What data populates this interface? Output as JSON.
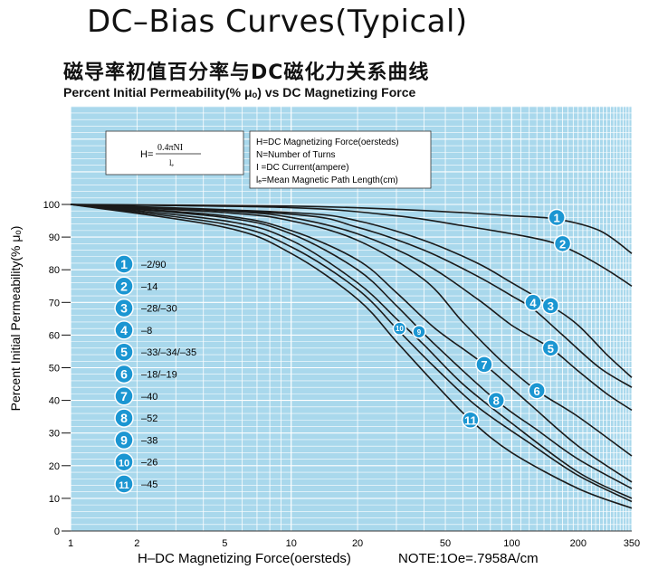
{
  "header": {
    "title": "DC–Bias Curves(Typical)",
    "cn_title": "磁导率初值百分率与DC磁化力关系曲线",
    "en_title": "Percent Initial Permeability(% μₒ) vs DC Magnetizing Force"
  },
  "formula": {
    "lhs": "H=",
    "numerator": "0.4πNI",
    "denominator": "lₑ"
  },
  "definitions": [
    "H=DC Magnetizing Force(oersteds)",
    "N=Number of Turns",
    "I =DC Current(ampere)",
    "lₑ=Mean Magnetic Path Length(cm)"
  ],
  "legend": [
    {
      "id": "1",
      "label": "–2/90"
    },
    {
      "id": "2",
      "label": "–14"
    },
    {
      "id": "3",
      "label": "–28/–30"
    },
    {
      "id": "4",
      "label": "–8"
    },
    {
      "id": "5",
      "label": "–33/–34/–35"
    },
    {
      "id": "6",
      "label": "–18/–19"
    },
    {
      "id": "7",
      "label": "–40"
    },
    {
      "id": "8",
      "label": "–52"
    },
    {
      "id": "9",
      "label": "–38"
    },
    {
      "id": "10",
      "label": "–26"
    },
    {
      "id": "11",
      "label": "–45"
    }
  ],
  "footer": {
    "xlabel": "H–DC Magnetizing Force(oersteds)",
    "note": "NOTE:1Oe=.7958A/cm"
  },
  "colors": {
    "plot_bg": "#a9d8ec",
    "grid": "#ffffff",
    "curve": "#1a1a1a",
    "badge": "#1b96d2",
    "badge_text": "#ffffff"
  },
  "chart_data": {
    "type": "line",
    "x_scale": "log",
    "xlim": [
      1,
      350
    ],
    "ylim": [
      0,
      100
    ],
    "x_ticks": [
      1,
      2,
      5,
      10,
      20,
      50,
      100,
      200,
      350
    ],
    "y_ticks": [
      0,
      10,
      20,
      30,
      40,
      50,
      60,
      70,
      80,
      90,
      100
    ],
    "ylabel": "Percent Initial Permeability(% μₒ)",
    "xlabel": "H–DC Magnetizing Force(oersteds)",
    "grid": true,
    "series": [
      {
        "name": "1",
        "label_at": [
          160,
          96
        ],
        "points": [
          [
            1,
            100
          ],
          [
            10,
            99.5
          ],
          [
            30,
            98.5
          ],
          [
            60,
            97.5
          ],
          [
            100,
            96.5
          ],
          [
            160,
            95.5
          ],
          [
            250,
            92
          ],
          [
            350,
            85
          ]
        ]
      },
      {
        "name": "2",
        "label_at": [
          170,
          88
        ],
        "points": [
          [
            1,
            100
          ],
          [
            10,
            99
          ],
          [
            30,
            96.5
          ],
          [
            60,
            93.5
          ],
          [
            100,
            91
          ],
          [
            150,
            88.5
          ],
          [
            200,
            85
          ],
          [
            270,
            80
          ],
          [
            350,
            75
          ]
        ]
      },
      {
        "name": "3",
        "label_at": [
          150,
          69
        ],
        "points": [
          [
            1,
            100
          ],
          [
            10,
            97.5
          ],
          [
            20,
            95
          ],
          [
            40,
            89
          ],
          [
            70,
            82
          ],
          [
            100,
            76
          ],
          [
            150,
            69
          ],
          [
            200,
            63
          ],
          [
            270,
            54
          ],
          [
            350,
            47
          ]
        ]
      },
      {
        "name": "4",
        "label_at": [
          125,
          70
        ],
        "points": [
          [
            1,
            100
          ],
          [
            10,
            97
          ],
          [
            20,
            93
          ],
          [
            40,
            86
          ],
          [
            70,
            78
          ],
          [
            100,
            72
          ],
          [
            125,
            68
          ],
          [
            170,
            60
          ],
          [
            250,
            50
          ],
          [
            350,
            44
          ]
        ]
      },
      {
        "name": "5",
        "label_at": [
          150,
          56
        ],
        "points": [
          [
            1,
            100
          ],
          [
            5,
            98
          ],
          [
            10,
            96
          ],
          [
            20,
            91
          ],
          [
            40,
            82
          ],
          [
            70,
            71
          ],
          [
            100,
            63
          ],
          [
            150,
            56
          ],
          [
            200,
            49
          ],
          [
            270,
            42
          ],
          [
            350,
            37
          ]
        ]
      },
      {
        "name": "6",
        "label_at": [
          130,
          43
        ],
        "points": [
          [
            1,
            100
          ],
          [
            5,
            97.5
          ],
          [
            10,
            95
          ],
          [
            20,
            89
          ],
          [
            40,
            77
          ],
          [
            60,
            64
          ],
          [
            90,
            52
          ],
          [
            130,
            43
          ],
          [
            200,
            35
          ],
          [
            350,
            23
          ]
        ]
      },
      {
        "name": "7",
        "label_at": [
          75,
          51
        ],
        "points": [
          [
            1,
            100
          ],
          [
            5,
            96.5
          ],
          [
            10,
            92
          ],
          [
            20,
            83
          ],
          [
            30,
            73
          ],
          [
            45,
            62
          ],
          [
            75,
            51
          ],
          [
            120,
            39
          ],
          [
            200,
            26
          ],
          [
            350,
            15
          ]
        ]
      },
      {
        "name": "8",
        "label_at": [
          85,
          40
        ],
        "points": [
          [
            1,
            100
          ],
          [
            5,
            96
          ],
          [
            10,
            91
          ],
          [
            20,
            80
          ],
          [
            30,
            69
          ],
          [
            45,
            57
          ],
          [
            85,
            40
          ],
          [
            130,
            31
          ],
          [
            200,
            22
          ],
          [
            350,
            13
          ]
        ]
      },
      {
        "name": "9",
        "label_at": [
          38,
          61
        ],
        "points": [
          [
            1,
            100
          ],
          [
            5,
            95
          ],
          [
            10,
            89
          ],
          [
            20,
            76
          ],
          [
            30,
            65
          ],
          [
            40,
            57
          ],
          [
            60,
            45
          ],
          [
            100,
            33
          ],
          [
            200,
            18
          ],
          [
            350,
            10
          ]
        ]
      },
      {
        "name": "10",
        "label_at": [
          31,
          62
        ],
        "points": [
          [
            1,
            100
          ],
          [
            5,
            94
          ],
          [
            10,
            87
          ],
          [
            20,
            74
          ],
          [
            31,
            61
          ],
          [
            45,
            50
          ],
          [
            70,
            38
          ],
          [
            120,
            27
          ],
          [
            200,
            17
          ],
          [
            350,
            9
          ]
        ]
      },
      {
        "name": "11",
        "label_at": [
          65,
          34
        ],
        "points": [
          [
            1,
            100
          ],
          [
            5,
            93
          ],
          [
            10,
            85
          ],
          [
            20,
            71
          ],
          [
            30,
            58
          ],
          [
            45,
            45
          ],
          [
            65,
            34
          ],
          [
            100,
            24
          ],
          [
            200,
            13
          ],
          [
            350,
            7
          ]
        ]
      }
    ]
  }
}
